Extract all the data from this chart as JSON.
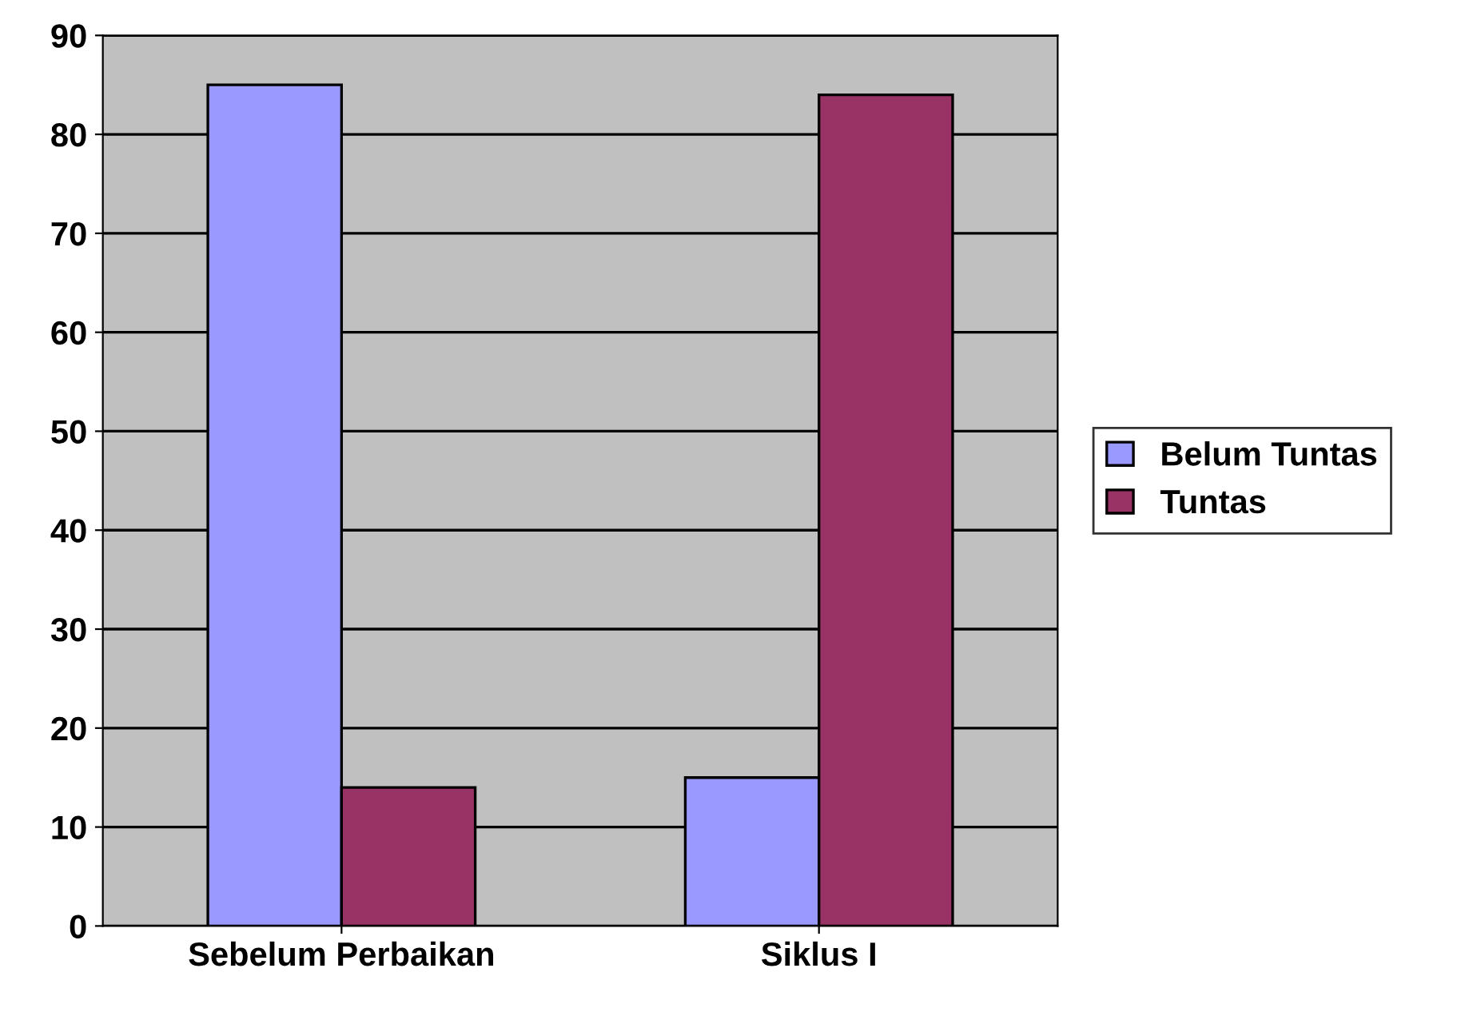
{
  "chart_data": {
    "type": "bar",
    "categories": [
      "Sebelum Perbaikan",
      "Siklus I"
    ],
    "series": [
      {
        "name": "Belum Tuntas",
        "color": "#9999ff",
        "values": [
          85,
          15
        ]
      },
      {
        "name": "Tuntas",
        "color": "#993366",
        "values": [
          14,
          84
        ]
      }
    ],
    "ylim": [
      0,
      90
    ],
    "yticks": [
      0,
      10,
      20,
      30,
      40,
      50,
      60,
      70,
      80,
      90
    ],
    "grid": "y",
    "legend": "right"
  }
}
